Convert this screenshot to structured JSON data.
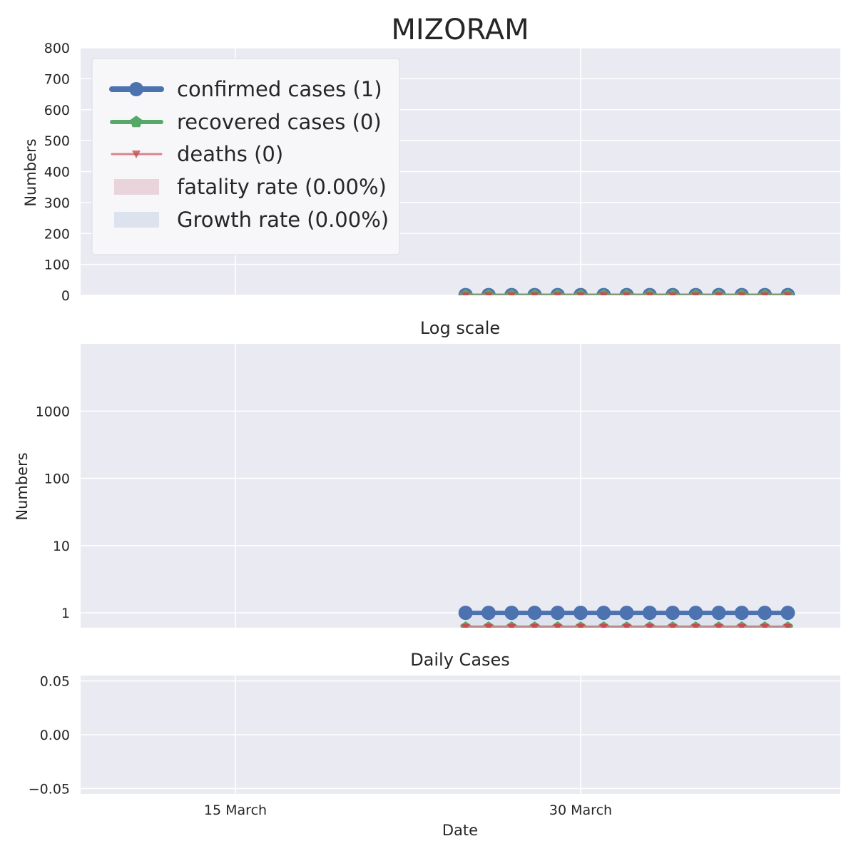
{
  "title": "MIZORAM",
  "colors": {
    "panel_bg": "#EAEAF2",
    "grid": "#FFFFFF",
    "confirmed": "#4C72B0",
    "recovered": "#55A868",
    "deaths": "#DD8452",
    "deaths_line": "#D9848E",
    "fatality_fill": "#E8D4DA",
    "growth_fill": "#DCE2EE",
    "text": "#262626"
  },
  "x_axis": {
    "label": "Date",
    "ticks": [
      {
        "date": "2020-03-15",
        "label": "15 March"
      },
      {
        "date": "2020-03-30",
        "label": "30 March"
      }
    ],
    "range": [
      "2020-03-08",
      "2020-04-10"
    ]
  },
  "chart_data": [
    {
      "type": "line",
      "title": "MIZORAM",
      "ylabel": "Numbers",
      "ylim": [
        0,
        800
      ],
      "yticks": [
        "0",
        "100",
        "200",
        "300",
        "400",
        "500",
        "600",
        "700",
        "800"
      ],
      "grid": true,
      "legend_position": "top-left",
      "legend": [
        {
          "label": "confirmed cases (1)",
          "kind": "line",
          "color": "#4C72B0",
          "marker": "circle"
        },
        {
          "label": "recovered cases (0)",
          "kind": "line",
          "color": "#55A868",
          "marker": "pentagon"
        },
        {
          "label": "deaths (0)",
          "kind": "line",
          "color": "#D9848E",
          "marker": "triangle-down"
        },
        {
          "label": "fatality rate (0.00%)",
          "kind": "patch",
          "color": "#E8D4DA"
        },
        {
          "label": "Growth rate (0.00%)",
          "kind": "patch",
          "color": "#DCE2EE"
        }
      ],
      "x": [
        "2020-03-25",
        "2020-03-26",
        "2020-03-27",
        "2020-03-28",
        "2020-03-29",
        "2020-03-30",
        "2020-03-31",
        "2020-04-01",
        "2020-04-02",
        "2020-04-03",
        "2020-04-04",
        "2020-04-05",
        "2020-04-06",
        "2020-04-07",
        "2020-04-08"
      ],
      "series": [
        {
          "name": "confirmed cases (1)",
          "values": [
            1,
            1,
            1,
            1,
            1,
            1,
            1,
            1,
            1,
            1,
            1,
            1,
            1,
            1,
            1
          ]
        },
        {
          "name": "recovered cases (0)",
          "values": [
            0,
            0,
            0,
            0,
            0,
            0,
            0,
            0,
            0,
            0,
            0,
            0,
            0,
            0,
            0
          ]
        },
        {
          "name": "deaths (0)",
          "values": [
            0,
            0,
            0,
            0,
            0,
            0,
            0,
            0,
            0,
            0,
            0,
            0,
            0,
            0,
            0
          ]
        }
      ]
    },
    {
      "type": "line",
      "title": "Log scale",
      "ylabel": "Numbers",
      "yscale": "log",
      "ylim": [
        0.6,
        10000
      ],
      "yticks": [
        "1",
        "10",
        "100",
        "1000"
      ],
      "grid": true,
      "x": [
        "2020-03-25",
        "2020-03-26",
        "2020-03-27",
        "2020-03-28",
        "2020-03-29",
        "2020-03-30",
        "2020-03-31",
        "2020-04-01",
        "2020-04-02",
        "2020-04-03",
        "2020-04-04",
        "2020-04-05",
        "2020-04-06",
        "2020-04-07",
        "2020-04-08"
      ],
      "series": [
        {
          "name": "confirmed cases (1)",
          "values": [
            1,
            1,
            1,
            1,
            1,
            1,
            1,
            1,
            1,
            1,
            1,
            1,
            1,
            1,
            1
          ]
        },
        {
          "name": "recovered cases (0)",
          "values": [
            0,
            0,
            0,
            0,
            0,
            0,
            0,
            0,
            0,
            0,
            0,
            0,
            0,
            0,
            0
          ]
        },
        {
          "name": "deaths (0)",
          "values": [
            0,
            0,
            0,
            0,
            0,
            0,
            0,
            0,
            0,
            0,
            0,
            0,
            0,
            0,
            0
          ]
        }
      ]
    },
    {
      "type": "bar",
      "title": "Daily Cases",
      "xlabel": "Date",
      "ylim": [
        -0.055,
        0.055
      ],
      "yticks": [
        "0.05",
        "0.00",
        "−0.05"
      ],
      "grid": true,
      "series": []
    }
  ]
}
